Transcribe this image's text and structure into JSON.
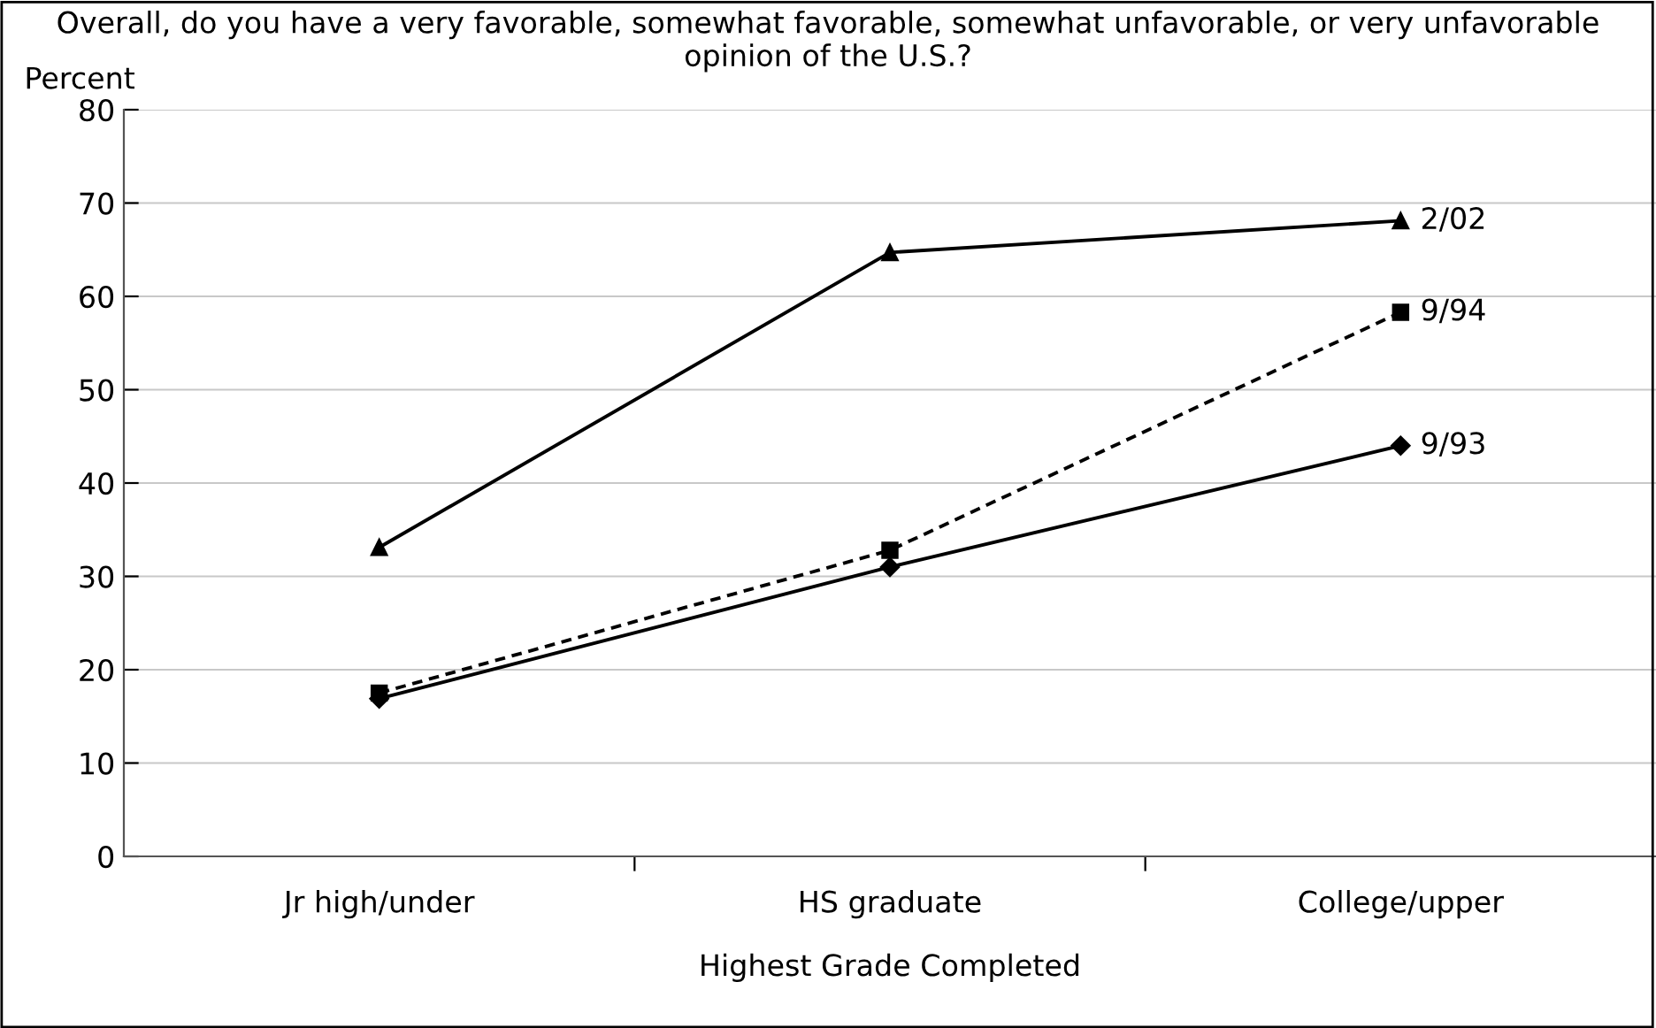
{
  "chart_data": {
    "type": "line",
    "title": "Overall, do you have a very favorable, somewhat favorable, somewhat unfavorable, or very unfavorable opinion of the U.S.?",
    "xlabel": "Highest Grade Completed",
    "ylabel": "Percent",
    "categories": [
      "Jr high/under",
      "HS graduate",
      "College/upper"
    ],
    "ylim": [
      0,
      80
    ],
    "yticks": [
      0,
      10,
      20,
      30,
      40,
      50,
      60,
      70,
      80
    ],
    "grid": "y",
    "legend": false,
    "series": [
      {
        "name": "2/02",
        "color": "#000000",
        "values": [
          33.1,
          64.7,
          68.1
        ],
        "marker": "triangle",
        "line_style": "solid"
      },
      {
        "name": "9/94",
        "color": "#000000",
        "values": [
          17.5,
          32.8,
          58.3
        ],
        "marker": "square",
        "line_style": "dashed"
      },
      {
        "name": "9/93",
        "color": "#000000",
        "values": [
          16.9,
          31.0,
          44.0
        ],
        "marker": "diamond",
        "line_style": "solid"
      }
    ]
  }
}
